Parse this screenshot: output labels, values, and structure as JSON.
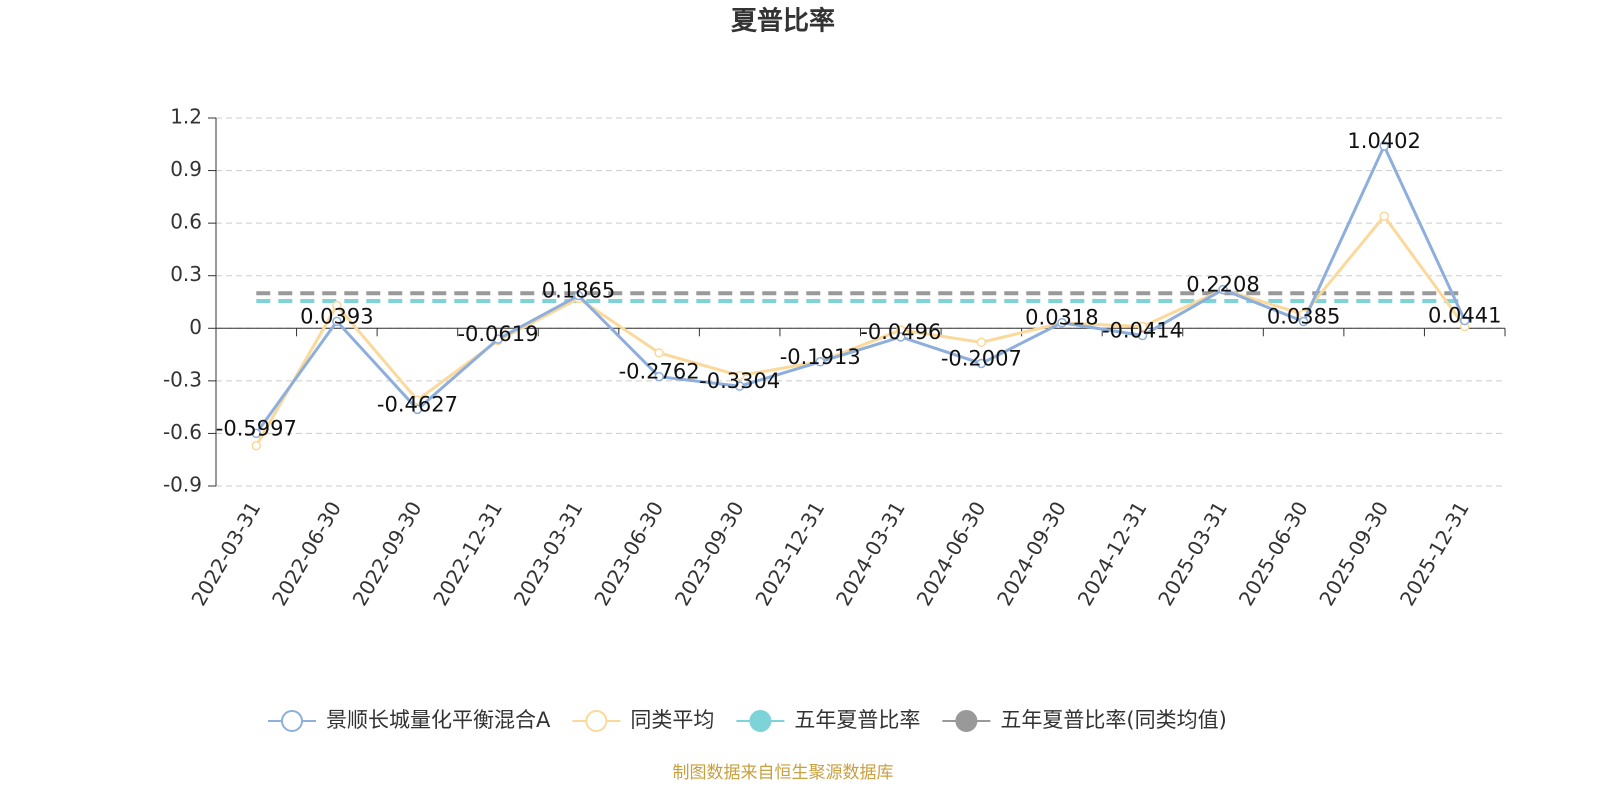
{
  "chart_data": {
    "type": "line",
    "title": "夏普比率",
    "categories": [
      "2022-03-31",
      "2022-06-30",
      "2022-09-30",
      "2022-12-31",
      "2023-03-31",
      "2023-06-30",
      "2023-09-30",
      "2023-12-31",
      "2024-03-31",
      "2024-06-30",
      "2024-09-30",
      "2024-12-31",
      "2025-03-31",
      "2025-06-30",
      "2025-09-30",
      "2025-12-31"
    ],
    "series": [
      {
        "name": "景顺长城量化平衡混合A",
        "color": "#8eaedc",
        "values": [
          -0.5997,
          0.0393,
          -0.4627,
          -0.0619,
          0.1865,
          -0.2762,
          -0.3304,
          -0.1913,
          -0.0496,
          -0.2007,
          0.0318,
          -0.0414,
          0.2208,
          0.0385,
          1.0402,
          0.0441
        ]
      },
      {
        "name": "同类平均",
        "color": "#fbd99a",
        "values": [
          -0.67,
          0.13,
          -0.41,
          -0.07,
          0.17,
          -0.14,
          -0.27,
          -0.19,
          -0.01,
          -0.08,
          0.03,
          0.01,
          0.22,
          0.08,
          0.64,
          0.01
        ]
      },
      {
        "name": "五年夏普比率",
        "color": "#7dd3d8",
        "values": [
          0.156,
          0.156,
          0.156,
          0.156,
          0.156,
          0.156,
          0.156,
          0.156,
          0.156,
          0.156,
          0.156,
          0.156,
          0.156,
          0.156,
          0.156,
          0.156
        ]
      },
      {
        "name": "五年夏普比率(同类均值)",
        "color": "#999999",
        "values": [
          0.2,
          0.2,
          0.2,
          0.2,
          0.2,
          0.2,
          0.2,
          0.2,
          0.2,
          0.2,
          0.2,
          0.2,
          0.2,
          0.2,
          0.2,
          0.2
        ]
      }
    ],
    "ylim": [
      -0.9,
      1.2
    ],
    "yticks": [
      -0.9,
      -0.6,
      -0.3,
      0,
      0.3,
      0.6,
      0.9,
      1.2
    ],
    "grid": true,
    "source": "制图数据来自恒生聚源数据库"
  }
}
